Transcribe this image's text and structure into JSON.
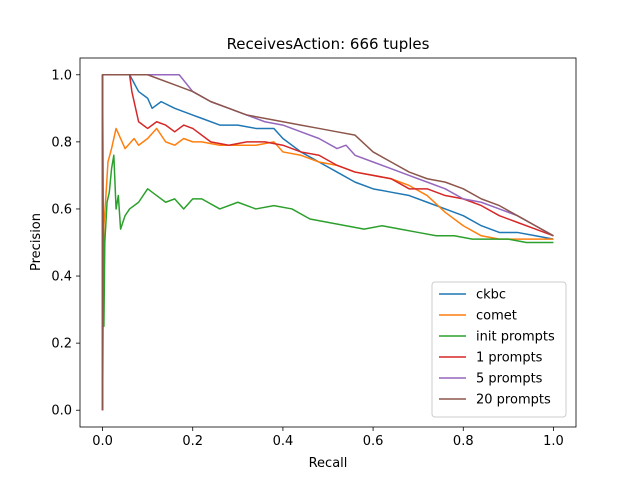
{
  "chart_data": {
    "type": "line",
    "title": "ReceivesAction: 666 tuples",
    "xlabel": "Recall",
    "ylabel": "Precision",
    "xlim": [
      -0.05,
      1.05
    ],
    "ylim": [
      -0.05,
      1.05
    ],
    "xticks": [
      0.0,
      0.2,
      0.4,
      0.6,
      0.8,
      1.0
    ],
    "yticks": [
      0.0,
      0.2,
      0.4,
      0.6,
      0.8,
      1.0
    ],
    "xtick_labels": [
      "0.0",
      "0.2",
      "0.4",
      "0.6",
      "0.8",
      "1.0"
    ],
    "ytick_labels": [
      "0.0",
      "0.2",
      "0.4",
      "0.6",
      "0.8",
      "1.0"
    ],
    "grid": false,
    "legend_position": "lower-right",
    "series": [
      {
        "name": "ckbc",
        "color": "#1f77b4",
        "x": [
          0.0,
          0.0,
          0.06,
          0.08,
          0.1,
          0.11,
          0.13,
          0.16,
          0.2,
          0.22,
          0.26,
          0.3,
          0.34,
          0.38,
          0.4,
          0.44,
          0.48,
          0.52,
          0.56,
          0.6,
          0.64,
          0.68,
          0.72,
          0.76,
          0.8,
          0.84,
          0.88,
          0.92,
          0.96,
          1.0
        ],
        "y": [
          0.0,
          1.0,
          1.0,
          0.95,
          0.93,
          0.9,
          0.92,
          0.9,
          0.88,
          0.87,
          0.85,
          0.85,
          0.84,
          0.84,
          0.81,
          0.77,
          0.74,
          0.71,
          0.68,
          0.66,
          0.65,
          0.64,
          0.62,
          0.6,
          0.58,
          0.55,
          0.53,
          0.53,
          0.52,
          0.51
        ]
      },
      {
        "name": "comet",
        "color": "#ff7f0e",
        "x": [
          0.0,
          0.003,
          0.008,
          0.012,
          0.02,
          0.03,
          0.05,
          0.07,
          0.08,
          0.1,
          0.12,
          0.14,
          0.16,
          0.18,
          0.2,
          0.22,
          0.26,
          0.3,
          0.34,
          0.38,
          0.4,
          0.44,
          0.48,
          0.52,
          0.56,
          0.6,
          0.64,
          0.68,
          0.72,
          0.76,
          0.8,
          0.84,
          0.88,
          0.92,
          0.96,
          1.0
        ],
        "y": [
          0.0,
          0.55,
          0.65,
          0.74,
          0.78,
          0.84,
          0.78,
          0.81,
          0.79,
          0.81,
          0.84,
          0.8,
          0.79,
          0.81,
          0.8,
          0.8,
          0.79,
          0.79,
          0.79,
          0.8,
          0.77,
          0.76,
          0.74,
          0.73,
          0.71,
          0.7,
          0.69,
          0.67,
          0.64,
          0.59,
          0.55,
          0.52,
          0.51,
          0.51,
          0.51,
          0.51
        ]
      },
      {
        "name": "init prompts",
        "color": "#2ca02c",
        "x": [
          0.0,
          0.0,
          0.003,
          0.005,
          0.01,
          0.015,
          0.02,
          0.025,
          0.03,
          0.035,
          0.04,
          0.05,
          0.06,
          0.08,
          0.1,
          0.12,
          0.14,
          0.16,
          0.18,
          0.2,
          0.22,
          0.26,
          0.3,
          0.34,
          0.38,
          0.42,
          0.46,
          0.5,
          0.54,
          0.58,
          0.62,
          0.66,
          0.7,
          0.74,
          0.78,
          0.82,
          0.86,
          0.9,
          0.94,
          1.0
        ],
        "y": [
          0.0,
          1.0,
          0.25,
          0.5,
          0.62,
          0.65,
          0.72,
          0.76,
          0.6,
          0.64,
          0.54,
          0.58,
          0.6,
          0.62,
          0.66,
          0.64,
          0.62,
          0.63,
          0.6,
          0.63,
          0.63,
          0.6,
          0.62,
          0.6,
          0.61,
          0.6,
          0.57,
          0.56,
          0.55,
          0.54,
          0.55,
          0.54,
          0.53,
          0.52,
          0.52,
          0.51,
          0.51,
          0.51,
          0.5,
          0.5
        ]
      },
      {
        "name": "1 prompts",
        "color": "#d62728",
        "x": [
          0.0,
          0.0,
          0.06,
          0.065,
          0.08,
          0.1,
          0.12,
          0.14,
          0.16,
          0.18,
          0.2,
          0.24,
          0.28,
          0.32,
          0.36,
          0.4,
          0.44,
          0.48,
          0.52,
          0.56,
          0.6,
          0.64,
          0.68,
          0.72,
          0.76,
          0.8,
          0.84,
          0.88,
          0.92,
          0.96,
          1.0
        ],
        "y": [
          0.0,
          1.0,
          1.0,
          0.95,
          0.86,
          0.84,
          0.86,
          0.85,
          0.83,
          0.85,
          0.84,
          0.8,
          0.79,
          0.8,
          0.8,
          0.79,
          0.77,
          0.76,
          0.73,
          0.71,
          0.7,
          0.69,
          0.66,
          0.66,
          0.64,
          0.63,
          0.61,
          0.58,
          0.56,
          0.54,
          0.52
        ]
      },
      {
        "name": "5 prompts",
        "color": "#9467bd",
        "x": [
          0.0,
          0.0,
          0.17,
          0.2,
          0.24,
          0.28,
          0.32,
          0.36,
          0.4,
          0.44,
          0.48,
          0.52,
          0.54,
          0.56,
          0.6,
          0.64,
          0.68,
          0.72,
          0.76,
          0.8,
          0.84,
          0.88,
          0.92,
          0.96,
          1.0
        ],
        "y": [
          0.0,
          1.0,
          1.0,
          0.95,
          0.92,
          0.9,
          0.88,
          0.86,
          0.85,
          0.83,
          0.81,
          0.78,
          0.79,
          0.76,
          0.74,
          0.72,
          0.7,
          0.68,
          0.66,
          0.63,
          0.62,
          0.6,
          0.58,
          0.55,
          0.52
        ]
      },
      {
        "name": "20 prompts",
        "color": "#8c564b",
        "x": [
          0.0,
          0.0,
          0.1,
          0.12,
          0.16,
          0.2,
          0.24,
          0.28,
          0.32,
          0.36,
          0.4,
          0.44,
          0.48,
          0.52,
          0.56,
          0.6,
          0.64,
          0.68,
          0.72,
          0.76,
          0.8,
          0.84,
          0.88,
          0.92,
          0.96,
          1.0
        ],
        "y": [
          0.0,
          1.0,
          1.0,
          0.99,
          0.97,
          0.95,
          0.92,
          0.9,
          0.88,
          0.87,
          0.86,
          0.85,
          0.84,
          0.83,
          0.82,
          0.77,
          0.74,
          0.71,
          0.69,
          0.68,
          0.66,
          0.63,
          0.61,
          0.58,
          0.55,
          0.52
        ]
      }
    ]
  }
}
